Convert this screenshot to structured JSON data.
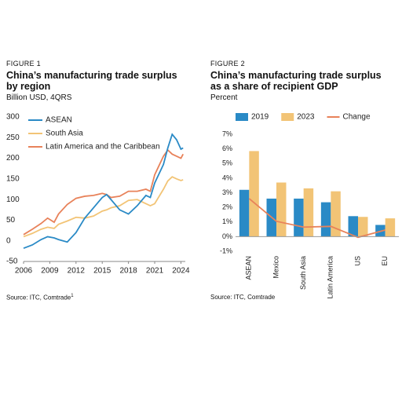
{
  "chart_data": [
    {
      "type": "line",
      "figure": "FIGURE 1",
      "title": "China’s manufacturing trade surplus by region",
      "subtitle": "Billion USD, 4QRS",
      "source": "Source: ITC, Comtrade",
      "source_superscript": "1",
      "legend": "upper left",
      "grid": false,
      "x": [
        2006,
        2007,
        2008,
        2008.75,
        2009.5,
        2010,
        2011,
        2012,
        2013,
        2014,
        2015,
        2015.5,
        2016,
        2017,
        2018,
        2019,
        2020,
        2020.5,
        2021,
        2022,
        2022.5,
        2023,
        2023.5,
        2024,
        2024.25
      ],
      "xlim": [
        2006,
        2024.5
      ],
      "xticks": [
        2006,
        2009,
        2012,
        2015,
        2018,
        2021,
        2024
      ],
      "ylim": [
        -50,
        300
      ],
      "yticks": [
        -50,
        0,
        50,
        100,
        150,
        200,
        250,
        300
      ],
      "series": [
        {
          "name": "ASEAN",
          "color": "#2a8ac6",
          "values": [
            -18,
            -10,
            3,
            10,
            7,
            3,
            -3,
            20,
            55,
            80,
            105,
            112,
            100,
            75,
            65,
            85,
            110,
            105,
            140,
            185,
            225,
            258,
            245,
            222,
            225
          ]
        },
        {
          "name": "South Asia",
          "color": "#f2c476",
          "values": [
            10,
            18,
            28,
            33,
            30,
            40,
            48,
            57,
            55,
            60,
            72,
            75,
            80,
            85,
            98,
            100,
            90,
            85,
            90,
            125,
            145,
            155,
            150,
            146,
            148
          ]
        },
        {
          "name": "Latin America and the Caribbean",
          "color": "#e8825a",
          "values": [
            15,
            28,
            42,
            55,
            45,
            65,
            88,
            103,
            108,
            110,
            115,
            112,
            105,
            108,
            120,
            120,
            125,
            120,
            160,
            205,
            220,
            210,
            205,
            200,
            210
          ]
        }
      ]
    },
    {
      "type": "bar",
      "figure": "FIGURE 2",
      "title": "China’s manufacturing trade surplus as a share of recipient GDP",
      "subtitle": "Percent",
      "source": "Source: ITC, Comtrade",
      "legend": "top",
      "grid": false,
      "categories": [
        "ASEAN",
        "Mexico",
        "South Asia",
        "Latin America",
        "US",
        "EU"
      ],
      "ylim": [
        -1,
        7
      ],
      "yticks": [
        {
          "value": -1,
          "label": "-1%"
        },
        {
          "value": 0,
          "label": "0%"
        },
        {
          "value": 1,
          "label": "1%"
        },
        {
          "value": 2,
          "label": "2%"
        },
        {
          "value": 3,
          "label": "3%"
        },
        {
          "value": 4,
          "label": "4%"
        },
        {
          "value": 5,
          "label": "5%"
        },
        {
          "value": 6,
          "label": "6%"
        },
        {
          "value": 7,
          "label": "7%"
        }
      ],
      "series": [
        {
          "name": "2019",
          "color": "#2a8ac6",
          "values": [
            3.2,
            2.6,
            2.6,
            2.35,
            1.4,
            0.8
          ]
        },
        {
          "name": "2023",
          "color": "#f2c476",
          "values": [
            5.85,
            3.7,
            3.3,
            3.1,
            1.35,
            1.25
          ]
        },
        {
          "name": "Change",
          "color": "#e8825a",
          "type": "line",
          "values": [
            2.6,
            1.05,
            0.65,
            0.7,
            -0.05,
            0.45
          ]
        }
      ]
    }
  ]
}
